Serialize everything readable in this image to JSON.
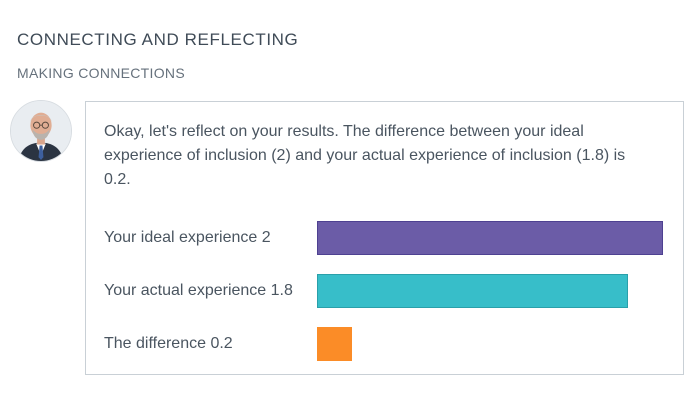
{
  "header": {
    "title": "CONNECTING AND REFLECTING",
    "subtitle": "MAKING CONNECTIONS"
  },
  "card": {
    "message": "Okay, let's reflect on your results. The difference between your ideal experience of inclusion (2) and your actual experience of inclusion (1.8) is 0.2.",
    "max_value": 2,
    "bars": [
      {
        "label": "Your ideal experience 2",
        "value": 2,
        "color": "#6b5ca7"
      },
      {
        "label": "Your actual experience 1.8",
        "value": 1.8,
        "color": "#37bec9"
      },
      {
        "label": "The difference 0.2",
        "value": 0.2,
        "color": "#fb8c27"
      }
    ]
  }
}
